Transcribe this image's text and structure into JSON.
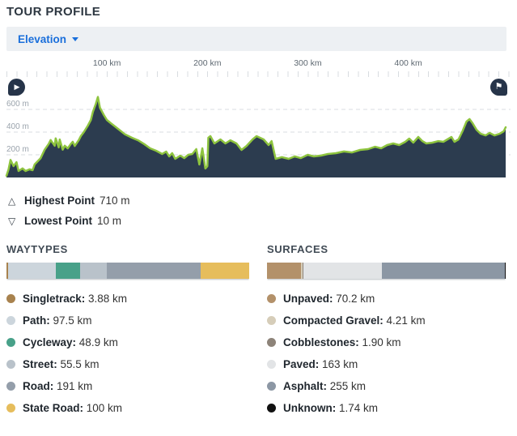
{
  "header": {
    "title": "TOUR PROFILE"
  },
  "toolbar": {
    "metric_selector": {
      "label": "Elevation",
      "icon": "chevron-down-icon"
    }
  },
  "chart_controls": {
    "play_button_icon": "play-icon",
    "finish_button_icon": "flag-icon"
  },
  "chart_data": {
    "type": "area",
    "title": "Elevation profile",
    "x_unit": "km",
    "y_unit": "m",
    "x_range": [
      0,
      497
    ],
    "y_range": [
      0,
      710
    ],
    "x_ticks_km": [
      100,
      200,
      300,
      400
    ],
    "x_tick_labels": [
      "100 km",
      "200 km",
      "300 km",
      "400 km"
    ],
    "y_ticks_m": [
      200,
      400,
      600
    ],
    "y_tick_labels": [
      "200 m",
      "400 m",
      "600 m"
    ],
    "grid": "dashed-horizontal",
    "line_color": "#8ec43f",
    "fill_color": "#2c3c4f",
    "highest_point_m": 710,
    "lowest_point_m": 10,
    "profile_points_km_m": [
      [
        0,
        15
      ],
      [
        2,
        70
      ],
      [
        4,
        155
      ],
      [
        7,
        100
      ],
      [
        10,
        135
      ],
      [
        12,
        57
      ],
      [
        16,
        80
      ],
      [
        19,
        57
      ],
      [
        23,
        72
      ],
      [
        26,
        64
      ],
      [
        28,
        115
      ],
      [
        34,
        170
      ],
      [
        38,
        245
      ],
      [
        42,
        295
      ],
      [
        44,
        330
      ],
      [
        48,
        280
      ],
      [
        49,
        345
      ],
      [
        52,
        265
      ],
      [
        53,
        335
      ],
      [
        56,
        245
      ],
      [
        58,
        280
      ],
      [
        61,
        257
      ],
      [
        64,
        295
      ],
      [
        66,
        315
      ],
      [
        68,
        278
      ],
      [
        72,
        330
      ],
      [
        74,
        365
      ],
      [
        77,
        400
      ],
      [
        81,
        457
      ],
      [
        84,
        507
      ],
      [
        86,
        578
      ],
      [
        89,
        650
      ],
      [
        91,
        710
      ],
      [
        93,
        615
      ],
      [
        97,
        550
      ],
      [
        100,
        507
      ],
      [
        104,
        478
      ],
      [
        108,
        450
      ],
      [
        113,
        415
      ],
      [
        118,
        380
      ],
      [
        125,
        350
      ],
      [
        131,
        328
      ],
      [
        137,
        295
      ],
      [
        143,
        257
      ],
      [
        149,
        236
      ],
      [
        155,
        207
      ],
      [
        159,
        228
      ],
      [
        162,
        186
      ],
      [
        165,
        214
      ],
      [
        168,
        164
      ],
      [
        173,
        193
      ],
      [
        177,
        171
      ],
      [
        181,
        200
      ],
      [
        185,
        207
      ],
      [
        189,
        250
      ],
      [
        192,
        114
      ],
      [
        195,
        257
      ],
      [
        198,
        79
      ],
      [
        200,
        100
      ],
      [
        201,
        350
      ],
      [
        203,
        365
      ],
      [
        207,
        300
      ],
      [
        213,
        336
      ],
      [
        218,
        300
      ],
      [
        223,
        328
      ],
      [
        229,
        300
      ],
      [
        234,
        243
      ],
      [
        239,
        278
      ],
      [
        245,
        336
      ],
      [
        249,
        364
      ],
      [
        256,
        336
      ],
      [
        261,
        286
      ],
      [
        264,
        321
      ],
      [
        268,
        164
      ],
      [
        274,
        179
      ],
      [
        281,
        164
      ],
      [
        287,
        186
      ],
      [
        293,
        171
      ],
      [
        300,
        200
      ],
      [
        306,
        186
      ],
      [
        313,
        193
      ],
      [
        320,
        207
      ],
      [
        328,
        214
      ],
      [
        336,
        229
      ],
      [
        344,
        221
      ],
      [
        352,
        243
      ],
      [
        360,
        250
      ],
      [
        367,
        271
      ],
      [
        373,
        257
      ],
      [
        379,
        286
      ],
      [
        385,
        300
      ],
      [
        391,
        286
      ],
      [
        397,
        314
      ],
      [
        401,
        343
      ],
      [
        405,
        307
      ],
      [
        410,
        357
      ],
      [
        414,
        321
      ],
      [
        418,
        300
      ],
      [
        424,
        307
      ],
      [
        430,
        321
      ],
      [
        435,
        314
      ],
      [
        439,
        336
      ],
      [
        443,
        357
      ],
      [
        446,
        314
      ],
      [
        450,
        336
      ],
      [
        454,
        407
      ],
      [
        458,
        493
      ],
      [
        461,
        515
      ],
      [
        464,
        479
      ],
      [
        468,
        421
      ],
      [
        472,
        386
      ],
      [
        477,
        371
      ],
      [
        481,
        393
      ],
      [
        486,
        371
      ],
      [
        491,
        386
      ],
      [
        495,
        407
      ],
      [
        497,
        443
      ]
    ]
  },
  "stats": {
    "highest": {
      "icon": "triangle-up-icon",
      "label": "Highest Point",
      "value": "710 m"
    },
    "lowest": {
      "icon": "triangle-down-icon",
      "label": "Lowest Point",
      "value": "10 m"
    }
  },
  "waytypes": {
    "title": "WAYTYPES",
    "items": [
      {
        "label": "Singletrack",
        "value": "3.88 km",
        "km": 3.88,
        "color": "#a8824e"
      },
      {
        "label": "Path",
        "value": "97.5 km",
        "km": 97.5,
        "color": "#ccd5dc"
      },
      {
        "label": "Cycleway",
        "value": "48.9 km",
        "km": 48.9,
        "color": "#48a189"
      },
      {
        "label": "Street",
        "value": "55.5 km",
        "km": 55.5,
        "color": "#b9c2ca"
      },
      {
        "label": "Road",
        "value": "191 km",
        "km": 191,
        "color": "#949eaa"
      },
      {
        "label": "State Road",
        "value": "100 km",
        "km": 100,
        "color": "#e6bd5c"
      }
    ]
  },
  "surfaces": {
    "title": "SURFACES",
    "items": [
      {
        "label": "Unpaved",
        "value": "70.2 km",
        "km": 70.2,
        "color": "#b3916a"
      },
      {
        "label": "Compacted Gravel",
        "value": "4.21 km",
        "km": 4.21,
        "color": "#d6cdb9"
      },
      {
        "label": "Cobblestones",
        "value": "1.90 km",
        "km": 1.9,
        "color": "#8d8379"
      },
      {
        "label": "Paved",
        "value": "163 km",
        "km": 163,
        "color": "#e2e4e6"
      },
      {
        "label": "Asphalt",
        "value": "255 km",
        "km": 255,
        "color": "#8c97a4"
      },
      {
        "label": "Unknown",
        "value": "1.74 km",
        "km": 1.74,
        "color": "#111111"
      }
    ]
  }
}
